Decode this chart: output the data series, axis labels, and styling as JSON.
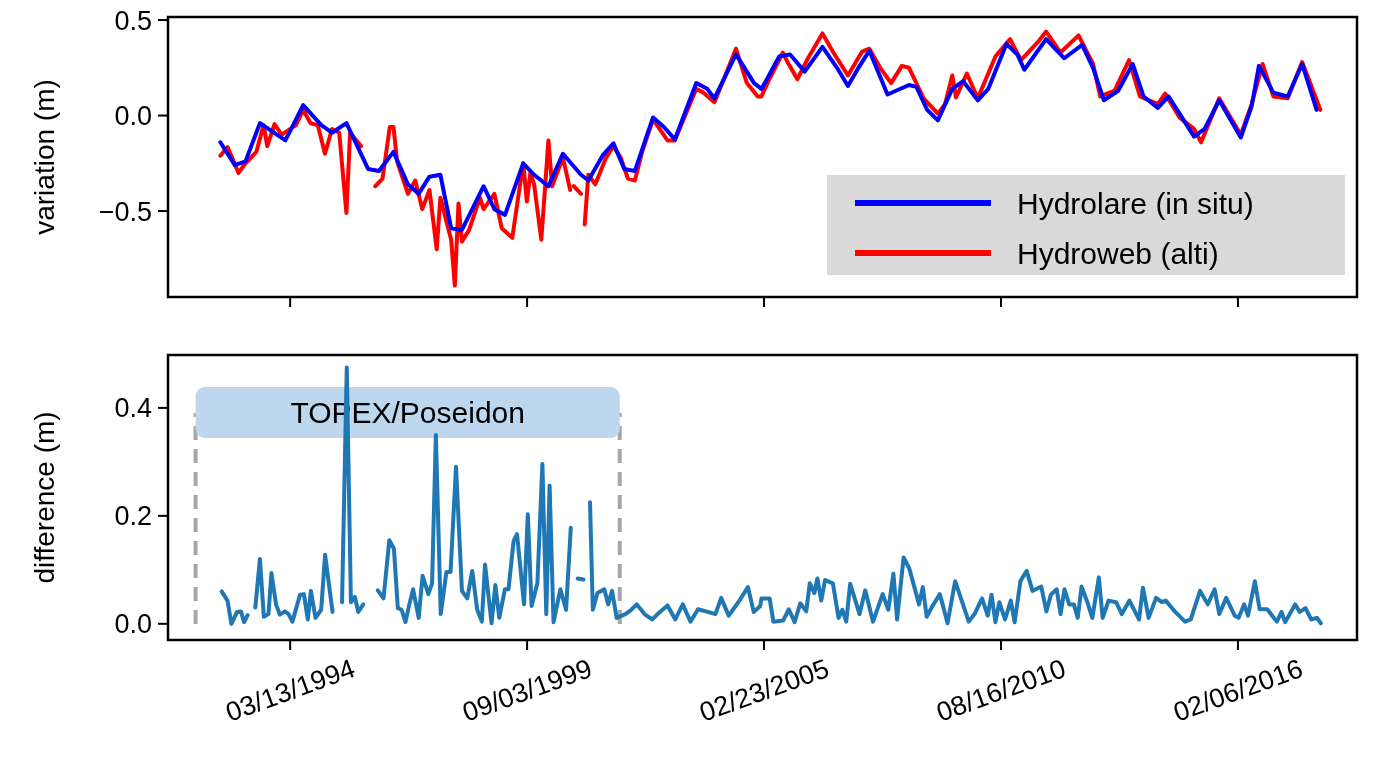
{
  "chart_data": [
    {
      "type": "line",
      "ylabel": "variation (m)",
      "xlim": [
        "1991-05-17",
        "2018-11-07"
      ],
      "ylim": [
        -0.95,
        0.516
      ],
      "xticks": [
        {
          "value": "1994-03-13",
          "label": null
        },
        {
          "value": "1999-09-03",
          "label": null
        },
        {
          "value": "2005-02-23",
          "label": null
        },
        {
          "value": "2010-08-16",
          "label": null
        },
        {
          "value": "2016-02-06",
          "label": null
        }
      ],
      "yticks": [
        {
          "value": -0.5,
          "label": "−0.5"
        },
        {
          "value": 0,
          "label": "0.0"
        },
        {
          "value": 0.5,
          "label": "0.5"
        }
      ],
      "tick_labels": "y",
      "legend": "bottom right",
      "series": [
        {
          "name": "Hydroweb (alti)",
          "color": "#ff0000",
          "x": [
            "1992-08",
            "1992-10",
            "1993-01",
            "1993-03",
            "1993-06",
            "1993-08",
            "1993-09",
            "1993-11",
            "1994-01",
            "1994-05",
            "1994-07",
            "1994-09",
            "1994-11",
            "1995-01",
            "1995-03",
            "1995-05",
            "1995-07",
            "1995-08",
            "1995-11",
            "1996-01-15",
            "1996-03",
            "1996-05",
            "1996-07",
            "1996-08",
            "1996-09",
            "1996-12",
            "1997-02",
            "1997-04",
            "1997-06",
            "1997-08",
            "1997-09",
            "1997-12",
            "1998-01",
            "1998-02",
            "1998-03",
            "1998-05",
            "1998-08",
            "1998-09",
            "1998-12",
            "1999-02",
            "1999-05",
            "1999-08",
            "1999-09",
            "1999-10",
            "1999-11",
            "2000-01",
            "2000-03",
            "2000-04",
            "2000-07",
            "2000-09",
            "2000-09-20",
            "2000-10",
            "2000-12",
            "2000-12-20",
            "2001-01",
            "2001-02",
            "2001-04",
            "2001-07",
            "2001-09",
            "2001-11",
            "2002-01",
            "2002-03",
            "2002-05",
            "2002-08",
            "2002-12",
            "2003-02",
            "2003-08",
            "2003-10",
            "2004-01",
            "2004-03",
            "2004-07",
            "2004-10",
            "2005-01",
            "2005-02",
            "2005-04",
            "2005-08",
            "2005-09",
            "2005-12",
            "2006-03",
            "2006-07",
            "2006-10",
            "2007-02",
            "2007-06",
            "2007-08",
            "2007-11",
            "2008-02",
            "2008-05",
            "2008-07",
            "2008-11",
            "2009-03",
            "2009-05",
            "2009-07",
            "2009-08",
            "2009-11",
            "2010-02",
            "2010-07",
            "2010-11",
            "2011-02",
            "2011-07",
            "2011-09",
            "2012-01",
            "2012-06",
            "2012-10",
            "2012-12",
            "2013-04",
            "2013-08",
            "2013-11",
            "2014-04",
            "2014-06",
            "2014-10",
            "2015-02",
            "2015-04",
            "2015-09",
            "2016-03",
            "2016-06",
            "2016-09",
            "2016-12",
            "2017-04",
            "2017-08",
            "2018-01"
          ],
          "values": [
            -0.21,
            -0.165,
            -0.3,
            -0.25,
            -0.19,
            -0.05,
            -0.16,
            -0.045,
            -0.1,
            -0.05,
            0.03,
            -0.04,
            -0.05,
            -0.2,
            -0.07,
            -0.09,
            -0.51,
            -0.09,
            -0.16,
            null,
            -0.37,
            -0.33,
            -0.06,
            -0.06,
            -0.24,
            -0.41,
            -0.34,
            -0.49,
            -0.39,
            -0.7,
            -0.43,
            -0.65,
            -0.89,
            -0.46,
            -0.66,
            -0.6,
            -0.43,
            -0.49,
            -0.41,
            -0.59,
            -0.64,
            -0.25,
            -0.45,
            -0.3,
            -0.36,
            -0.65,
            -0.13,
            -0.37,
            -0.22,
            -0.39,
            null,
            -0.37,
            -0.41,
            null,
            -0.57,
            -0.31,
            -0.36,
            -0.22,
            -0.16,
            -0.22,
            -0.33,
            -0.34,
            -0.19,
            -0.02,
            -0.13,
            -0.13,
            0.14,
            0.12,
            0.07,
            0.16,
            0.35,
            0.17,
            0.1,
            0.1,
            0.18,
            0.33,
            0.29,
            0.19,
            0.3,
            0.43,
            0.33,
            0.21,
            0.335,
            0.35,
            0.25,
            0.17,
            0.26,
            0.25,
            0.09,
            0.01,
            0.06,
            0.21,
            0.095,
            0.22,
            0.09,
            0.31,
            0.4,
            0.29,
            0.39,
            0.44,
            0.33,
            0.42,
            0.27,
            0.1,
            0.13,
            0.29,
            0.1,
            0.06,
            0.115,
            -0.01,
            -0.07,
            -0.14,
            0.09,
            -0.1,
            0.06,
            0.27,
            0.1,
            0.09,
            0.28,
            0.03
          ]
        },
        {
          "name": "Hydrolare (in situ)",
          "color": "#0000ff",
          "x": [
            "1992-08",
            "1992-12",
            "1993-03",
            "1993-07",
            "1994-02",
            "1994-07",
            "1994-12",
            "1995-03",
            "1995-07",
            "1996-01",
            "1996-04",
            "1996-08",
            "1996-12",
            "1997-03",
            "1997-06",
            "1997-09",
            "1997-12",
            "1998-03",
            "1998-09",
            "1998-12",
            "1999-03",
            "1999-08",
            "1999-11",
            "2000-03",
            "2000-07",
            "2000-12",
            "2001-02",
            "2001-06",
            "2001-09",
            "2001-12",
            "2002-03",
            "2002-08",
            "2002-11",
            "2003-02",
            "2003-08",
            "2003-11",
            "2004-01",
            "2004-07",
            "2004-12",
            "2005-02",
            "2005-03",
            "2005-07",
            "2005-10",
            "2006-02",
            "2006-07",
            "2006-11",
            "2007-02",
            "2007-05",
            "2007-08",
            "2008-01",
            "2008-07",
            "2008-09",
            "2008-12",
            "2009-03",
            "2009-07",
            "2009-10",
            "2010-02",
            "2010-05",
            "2010-10",
            "2011-01",
            "2011-03",
            "2011-09",
            "2012-02",
            "2012-07",
            "2012-10",
            "2013-01",
            "2013-05",
            "2013-09",
            "2013-12",
            "2014-04",
            "2014-07",
            "2014-10",
            "2015-02",
            "2015-05",
            "2015-09",
            "2016-03",
            "2016-06",
            "2016-08",
            "2016-12",
            "2017-04",
            "2017-08",
            "2017-12"
          ],
          "values": [
            -0.14,
            -0.26,
            -0.24,
            -0.04,
            -0.13,
            0.055,
            -0.05,
            -0.09,
            -0.04,
            -0.28,
            -0.29,
            -0.19,
            -0.36,
            -0.41,
            -0.32,
            -0.31,
            -0.59,
            -0.6,
            -0.37,
            -0.49,
            -0.52,
            -0.25,
            -0.31,
            -0.37,
            -0.2,
            -0.31,
            -0.34,
            -0.21,
            -0.145,
            -0.28,
            -0.29,
            -0.01,
            -0.06,
            -0.125,
            0.17,
            0.14,
            0.09,
            0.32,
            0.17,
            0.14,
            0.17,
            0.31,
            0.32,
            0.23,
            0.36,
            0.25,
            0.155,
            0.25,
            0.34,
            0.11,
            0.16,
            0.15,
            0.03,
            -0.025,
            0.14,
            0.18,
            0.08,
            0.14,
            0.375,
            0.32,
            0.24,
            0.4,
            0.3,
            0.37,
            0.25,
            0.08,
            0.13,
            0.27,
            0.1,
            0.04,
            0.1,
            0.01,
            -0.11,
            -0.07,
            0.08,
            -0.115,
            0.05,
            0.26,
            0.12,
            0.1,
            0.27,
            0.03
          ]
        }
      ]
    },
    {
      "type": "line",
      "ylabel": "difference (m)",
      "xlim": [
        "1991-05-17",
        "2018-11-07"
      ],
      "ylim": [
        -0.03,
        0.498
      ],
      "xticks": [
        {
          "value": "1994-03-13",
          "label": "03/13/1994"
        },
        {
          "value": "1999-09-03",
          "label": "09/03/1999"
        },
        {
          "value": "2005-02-23",
          "label": "02/23/2005"
        },
        {
          "value": "2010-08-16",
          "label": "08/16/2010"
        },
        {
          "value": "2016-02-06",
          "label": "02/06/2016"
        }
      ],
      "yticks": [
        {
          "value": 0,
          "label": "0.0"
        },
        {
          "value": 0.2,
          "label": "0.2"
        },
        {
          "value": 0.4,
          "label": "0.4"
        }
      ],
      "bands": [
        {
          "axis": "x",
          "from": "1992-01-05",
          "to": "2001-10-24",
          "label": "TOPEX/Poseidon",
          "color": "#bdd7ee"
        }
      ],
      "ref_lines": [
        {
          "axis": "x",
          "value": "1992-01-05",
          "color": "#a6a6a6",
          "line_style": "dashed"
        },
        {
          "axis": "x",
          "value": "2001-10-24",
          "color": "#a6a6a6",
          "line_style": "dashed"
        }
      ],
      "series": [
        {
          "color": "#1f77b4",
          "x": [
            "1992-08-12",
            "1992-09-30",
            "1992-11-02",
            "1992-12-20",
            "1993-01-22",
            "1993-02-17",
            "1993-03-19",
            "1993-04-20",
            "1993-05-23",
            "1993-07-01",
            "1993-08-03",
            "1993-09-11",
            "1993-10-06",
            "1993-11-14",
            "1993-12-16",
            "1994-01-28",
            "1994-02-28",
            "1994-04-01",
            "1994-06-05",
            "1994-07-07",
            "1994-08-09",
            "1994-09-04",
            "1994-10-13",
            "1994-11-30",
            "1995-01-02",
            "1995-03-06",
            "1995-04-15",
            "1995-05-25",
            "1995-07-04",
            "1995-08-08",
            "1995-09-10",
            "1995-10-09",
            "1995-11-20",
            "1996-01-15",
            "1996-03-22",
            "1996-05-09",
            "1996-06-27",
            "1996-08-05",
            "1996-09-07",
            "1996-10-09",
            "1996-11-10",
            "1996-12-13",
            "1997-01-14",
            "1997-03-02",
            "1997-04-04",
            "1997-05-22",
            "1997-06-23",
            "1997-07-25",
            "1997-09-04",
            "1997-10-22",
            "1997-11-26",
            "1998-01-11",
            "1998-03-02",
            "1998-04-16",
            "1998-05-28",
            "1998-07-09",
            "1998-08-17",
            "1998-09-13",
            "1998-11-07",
            "1998-12-09",
            "1999-01-11",
            "1999-02-28",
            "1999-03-30",
            "1999-05-12",
            "1999-06-10",
            "1999-08-08",
            "1999-09-09",
            "1999-10-11",
            "1999-11-29",
            "2000-01-10",
            "2000-02-12",
            "2000-03-11",
            "2000-04-13",
            "2000-06-10",
            "2000-07-28",
            "2000-09-06",
            "2000-10-05",
            "2000-11-03",
            "2000-12-21",
            "2001-01-18",
            "2001-02-15",
            "2001-03-11",
            "2001-04-19",
            "2001-06-16",
            "2001-07-18",
            "2001-08-20",
            "2001-09-28",
            "2001-12-11",
            "2002-01-29",
            "2002-03-17",
            "2002-05-21",
            "2002-07-24",
            "2002-09-28",
            "2002-12-01",
            "2003-02-05",
            "2003-04-09",
            "2003-06-13",
            "2003-08-16",
            "2003-11-06",
            "2004-01-10",
            "2004-02-27",
            "2004-05-01",
            "2004-07-21",
            "2004-10-10",
            "2004-11-28",
            "2005-01-22",
            "2005-02-01",
            "2005-04-11",
            "2005-05-13",
            "2005-08-03",
            "2005-09-20",
            "2005-11-08",
            "2005-12-26",
            "2006-02-14",
            "2006-03-16",
            "2006-04-24",
            "2006-05-19",
            "2006-06-21",
            "2006-07-23",
            "2006-09-27",
            "2006-11-14",
            "2006-12-16",
            "2007-01-18",
            "2007-02-20",
            "2007-05-10",
            "2007-06-27",
            "2007-09-01",
            "2007-11-21",
            "2008-01-08",
            "2008-02-20",
            "2008-03-22",
            "2008-05-16",
            "2008-07-04",
            "2008-09-23",
            "2008-10-25",
            "2008-11-27",
            "2009-01-15",
            "2009-03-18",
            "2009-05-22",
            "2009-07-25",
            "2009-09-29",
            "2009-11-17",
            "2010-01-05",
            "2010-03-09",
            "2010-04-26",
            "2010-05-28",
            "2010-06-30",
            "2010-08-02",
            "2010-09-19",
            "2010-11-07",
            "2010-12-09",
            "2011-01-27",
            "2011-03-21",
            "2011-05-09",
            "2011-07-22",
            "2011-09-03",
            "2011-10-11",
            "2011-11-29",
            "2012-01-01",
            "2012-02-03",
            "2012-03-14",
            "2012-04-22",
            "2012-05-25",
            "2012-06-26",
            "2012-08-14",
            "2012-09-25",
            "2012-11-19",
            "2012-12-21",
            "2013-02-09",
            "2013-04-13",
            "2013-06-01",
            "2013-08-04",
            "2013-10-24",
            "2013-11-26",
            "2014-01-13",
            "2014-03-17",
            "2014-05-05",
            "2014-06-07",
            "2014-08-26",
            "2014-11-16",
            "2015-01-04",
            "2015-03-23",
            "2015-05-27",
            "2015-07-24",
            "2015-09-02",
            "2015-10-30",
            "2016-01-10",
            "2016-02-12",
            "2016-03-29",
            "2016-05-01",
            "2016-06-28",
            "2016-08-07",
            "2016-10-10",
            "2016-12-30",
            "2017-02-08",
            "2017-03-10",
            "2017-06-03",
            "2017-07-11",
            "2017-08-29",
            "2017-10-17",
            "2017-12-04",
            "2018-01-06"
          ],
          "values": [
            0.06,
            0.043,
            0.0,
            0.022,
            0.023,
            0.003,
            0.016,
            null,
            0.03,
            0.12,
            0.013,
            0.018,
            0.094,
            0.036,
            0.017,
            0.023,
            0.018,
            0.004,
            0.054,
            0.055,
            0.008,
            0.061,
            0.011,
            0.026,
            0.128,
            0.022,
            null,
            0.04,
            0.475,
            0.04,
            0.05,
            0.022,
            0.036,
            null,
            0.062,
            0.047,
            0.155,
            0.139,
            0.029,
            0.026,
            0.003,
            0.036,
            0.064,
            0.011,
            0.089,
            0.055,
            0.075,
            0.35,
            0.018,
            0.096,
            0.096,
            0.291,
            0.061,
            0.047,
            0.098,
            0.026,
            0.004,
            0.11,
            0.001,
            0.072,
            0.011,
            0.064,
            0.064,
            0.153,
            0.166,
            0.036,
            0.203,
            0.033,
            0.075,
            0.296,
            0.018,
            0.256,
            0.003,
            0.064,
            0.026,
            0.178,
            null,
            0.084,
            0.082,
            null,
            0.225,
            0.026,
            0.057,
            0.064,
            0.036,
            0.061,
            0.011,
            0.018,
            0.026,
            0.036,
            0.018,
            0.008,
            0.022,
            0.034,
            0.008,
            0.036,
            0.004,
            0.027,
            0.022,
            0.018,
            0.048,
            0.015,
            0.04,
            0.068,
            0.022,
            0.033,
            0.047,
            0.047,
            0.004,
            0.006,
            0.027,
            0.003,
            0.038,
            0.023,
            0.075,
            0.057,
            0.084,
            0.043,
            0.081,
            0.075,
            0.011,
            0.026,
            0.004,
            0.074,
            0.018,
            0.062,
            0.004,
            0.055,
            0.026,
            0.093,
            0.008,
            0.123,
            0.102,
            0.036,
            0.068,
            0.013,
            0.033,
            0.055,
            0.001,
            0.079,
            0.036,
            0.004,
            0.018,
            0.047,
            0.015,
            0.054,
            0.003,
            0.04,
            0.008,
            0.043,
            0.003,
            0.079,
            0.098,
            0.061,
            0.069,
            0.023,
            0.054,
            0.064,
            0.018,
            0.064,
            0.036,
            0.036,
            0.011,
            0.069,
            0.04,
            0.011,
            0.086,
            0.011,
            0.043,
            0.04,
            0.018,
            0.043,
            0.008,
            0.067,
            0.011,
            0.048,
            0.04,
            0.043,
            0.022,
            0.004,
            0.008,
            0.061,
            0.036,
            0.064,
            0.018,
            0.048,
            0.015,
            0.011,
            0.036,
            0.015,
            0.079,
            0.027,
            0.027,
            0.004,
            0.022,
            0.003,
            0.036,
            0.022,
            0.029,
            0.008,
            0.011,
            0.001
          ]
        }
      ]
    }
  ]
}
